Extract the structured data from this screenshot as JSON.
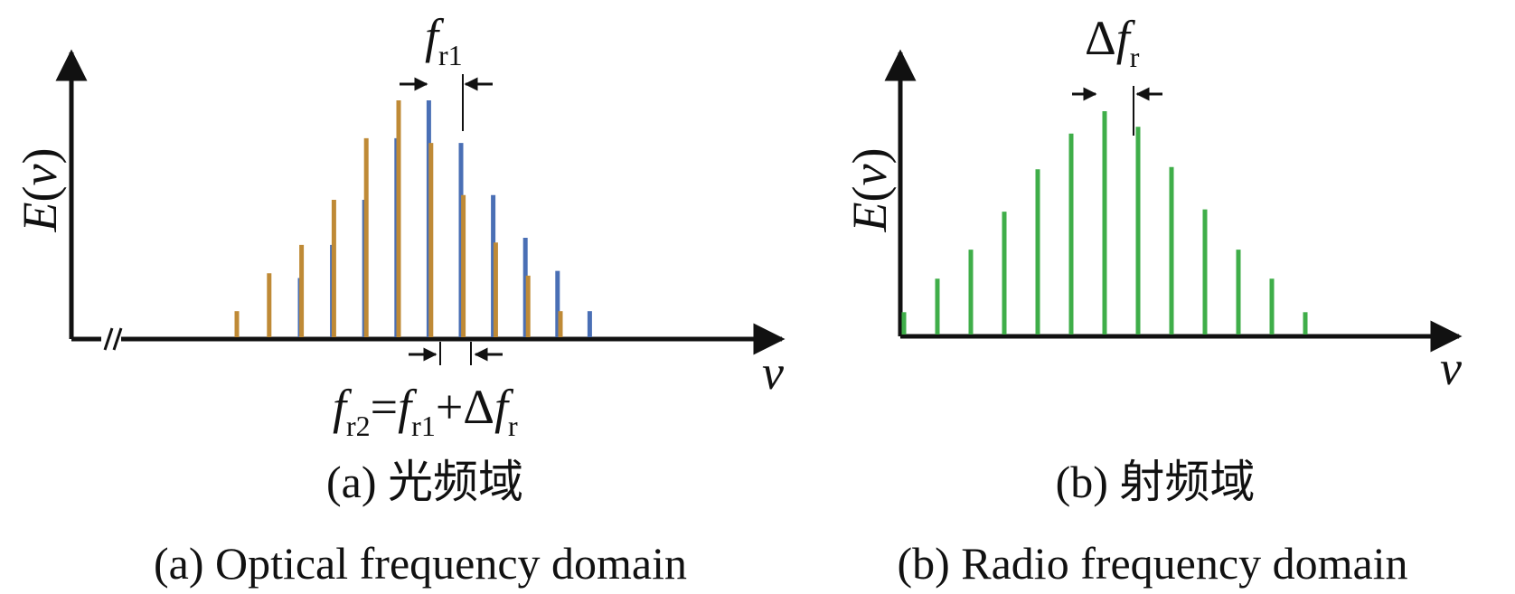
{
  "colors": {
    "axis": "#111111",
    "optical_comb1": "#4a6fb5",
    "optical_comb2": "#bf8a36",
    "radio_comb": "#3fae49"
  },
  "panel_a": {
    "y_axis_label": {
      "sym": "E",
      "open": "(",
      "var": "v",
      "close": ")"
    },
    "x_axis_label": "v",
    "top_marker": {
      "sym": "f",
      "sub": "r1"
    },
    "bottom_marker": {
      "f": "f",
      "sub1": "r2",
      "eq": "=",
      "f2": "f",
      "sub2": "r1",
      "plus": "+",
      "delta": "Δ",
      "f3": "f",
      "sub3": "r"
    },
    "caption_cn": "(a) 光频域",
    "caption_en": "(a) Optical frequency domain",
    "comb1_amplitudes": [
      0.25,
      0.39,
      0.58,
      0.84,
      1.0,
      0.82,
      0.6,
      0.42,
      0.28,
      0.11
    ],
    "comb2_amplitudes": [
      0.11,
      0.27,
      0.39,
      0.58,
      0.84,
      1.0,
      0.82,
      0.6,
      0.4,
      0.26,
      0.11
    ]
  },
  "panel_b": {
    "y_axis_label": {
      "sym": "E",
      "open": "(",
      "var": "v",
      "close": ")"
    },
    "x_axis_label": "v",
    "top_marker": {
      "delta": "Δ",
      "sym": "f",
      "sub": "r"
    },
    "caption_cn": "(b) 射频域",
    "caption_en": "(b) Radio frequency domain",
    "comb_amplitudes": [
      0.1,
      0.25,
      0.38,
      0.55,
      0.74,
      0.9,
      1.0,
      0.93,
      0.75,
      0.56,
      0.38,
      0.25,
      0.1
    ]
  }
}
